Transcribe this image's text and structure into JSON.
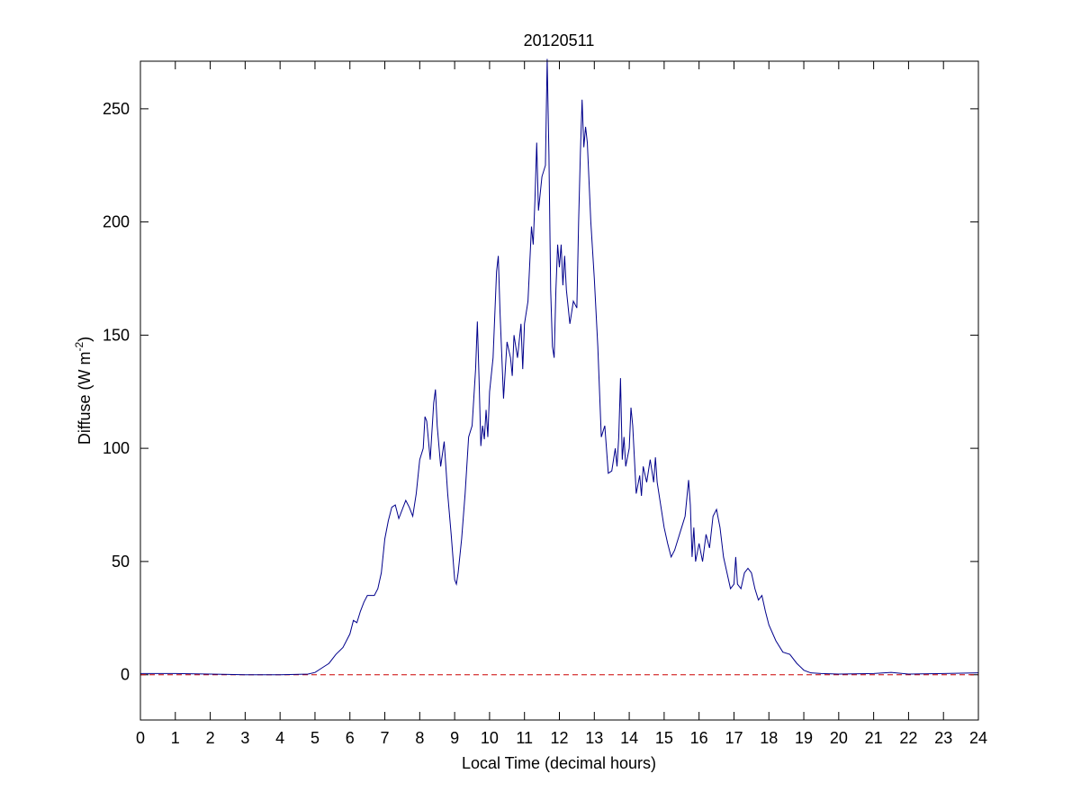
{
  "chart_data": {
    "type": "line",
    "title": "20120511",
    "x_label": "Local Time (decimal hours)",
    "y_label": {
      "text": "Diffuse (W m",
      "superscript": "-2",
      "suffix": ")"
    },
    "xlim": [
      0,
      24
    ],
    "xticks": [
      0,
      1,
      2,
      3,
      4,
      5,
      6,
      7,
      8,
      9,
      10,
      11,
      12,
      13,
      14,
      15,
      16,
      17,
      18,
      19,
      20,
      21,
      22,
      23,
      24
    ],
    "ylim": [
      -20,
      271
    ],
    "yticks": [
      0,
      50,
      100,
      150,
      200,
      250
    ],
    "reference_line": {
      "value": 0,
      "color": "#cc0000"
    },
    "series": [
      {
        "color": "#00008b",
        "x": [
          0,
          1,
          2,
          3,
          4,
          4.8,
          5,
          5.2,
          5.4,
          5.6,
          5.8,
          5.9,
          6.0,
          6.1,
          6.2,
          6.3,
          6.4,
          6.5,
          6.7,
          6.8,
          6.9,
          7.0,
          7.1,
          7.2,
          7.3,
          7.4,
          7.5,
          7.6,
          7.7,
          7.8,
          7.9,
          8.0,
          8.1,
          8.15,
          8.2,
          8.3,
          8.4,
          8.45,
          8.5,
          8.6,
          8.7,
          8.8,
          8.9,
          9.0,
          9.05,
          9.1,
          9.2,
          9.3,
          9.4,
          9.5,
          9.6,
          9.65,
          9.7,
          9.75,
          9.8,
          9.85,
          9.9,
          9.95,
          10.0,
          10.1,
          10.2,
          10.25,
          10.3,
          10.4,
          10.5,
          10.6,
          10.65,
          10.7,
          10.8,
          10.9,
          10.95,
          11.0,
          11.1,
          11.2,
          11.25,
          11.3,
          11.35,
          11.4,
          11.5,
          11.6,
          11.65,
          11.7,
          11.75,
          11.8,
          11.85,
          11.9,
          11.95,
          12.0,
          12.05,
          12.1,
          12.15,
          12.2,
          12.3,
          12.4,
          12.5,
          12.55,
          12.6,
          12.65,
          12.7,
          12.75,
          12.8,
          12.9,
          13.0,
          13.1,
          13.2,
          13.3,
          13.4,
          13.5,
          13.6,
          13.65,
          13.7,
          13.75,
          13.8,
          13.85,
          13.9,
          14.0,
          14.05,
          14.1,
          14.2,
          14.3,
          14.35,
          14.4,
          14.5,
          14.6,
          14.7,
          14.75,
          14.8,
          14.9,
          15.0,
          15.1,
          15.2,
          15.3,
          15.4,
          15.5,
          15.6,
          15.7,
          15.75,
          15.8,
          15.85,
          15.9,
          16.0,
          16.1,
          16.2,
          16.3,
          16.4,
          16.5,
          16.6,
          16.7,
          16.8,
          16.9,
          17.0,
          17.05,
          17.1,
          17.2,
          17.3,
          17.4,
          17.5,
          17.6,
          17.7,
          17.8,
          17.9,
          18.0,
          18.2,
          18.4,
          18.6,
          18.8,
          19.0,
          19.2,
          19.5,
          20,
          21,
          21.5,
          22,
          23,
          24
        ],
        "values": [
          0.5,
          0.5,
          0.3,
          0,
          0,
          0.3,
          1,
          3,
          5,
          9,
          12,
          15,
          18,
          24,
          23,
          28,
          32,
          35,
          35,
          38,
          45,
          60,
          68,
          74,
          75,
          69,
          73,
          77,
          74,
          70,
          80,
          95,
          100,
          114,
          112,
          95,
          120,
          126,
          110,
          92,
          103,
          80,
          62,
          42,
          40,
          45,
          60,
          80,
          105,
          110,
          135,
          156,
          130,
          101,
          110,
          104,
          117,
          105,
          125,
          140,
          178,
          185,
          160,
          122,
          147,
          140,
          132,
          150,
          140,
          155,
          135,
          155,
          165,
          198,
          190,
          210,
          235,
          205,
          220,
          225,
          272,
          230,
          170,
          145,
          140,
          170,
          190,
          180,
          190,
          172,
          185,
          170,
          155,
          165,
          162,
          200,
          230,
          254,
          233,
          242,
          235,
          200,
          175,
          145,
          105,
          110,
          89,
          90,
          100,
          92,
          105,
          131,
          95,
          105,
          92,
          100,
          118,
          110,
          80,
          88,
          79,
          92,
          85,
          95,
          85,
          96,
          85,
          75,
          65,
          58,
          52,
          55,
          60,
          65,
          70,
          86,
          75,
          52,
          65,
          50,
          58,
          50,
          62,
          56,
          70,
          73,
          65,
          52,
          45,
          38,
          40,
          52,
          40,
          38,
          45,
          47,
          45,
          38,
          33,
          35,
          28,
          22,
          15,
          10,
          9,
          5,
          2,
          0.8,
          0.5,
          0.3,
          0.5,
          1,
          0.3,
          0.5,
          0.8
        ]
      }
    ]
  }
}
